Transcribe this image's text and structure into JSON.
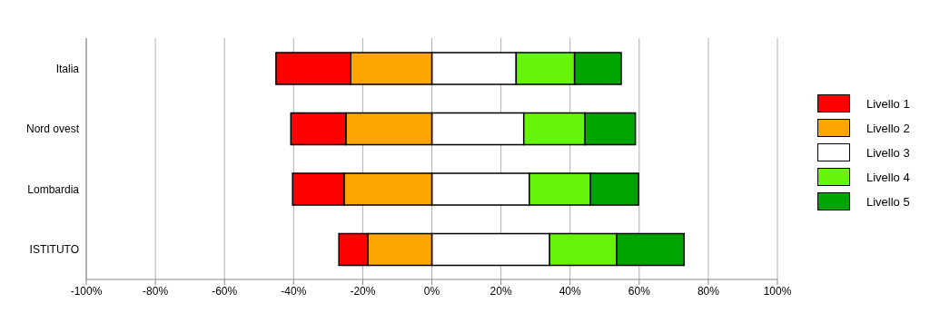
{
  "chart_data": {
    "type": "bar",
    "orientation": "horizontal",
    "stacked": true,
    "categories": [
      "Italia",
      "Nord ovest",
      "Lombardia",
      "ISTITUTO"
    ],
    "series": [
      {
        "name": "Livello 1",
        "color": "#ff0000",
        "values": [
          -21.6,
          -15.9,
          -14.9,
          -8.4
        ]
      },
      {
        "name": "Livello 2",
        "color": "#ffa500",
        "values": [
          -23.5,
          -24.9,
          -25.4,
          -18.5
        ]
      },
      {
        "name": "Livello 3",
        "color": "#ffffff",
        "values": [
          24.4,
          26.6,
          28.2,
          34.1
        ]
      },
      {
        "name": "Livello 4",
        "color": "#66f50a",
        "values": [
          16.9,
          17.7,
          17.7,
          19.4
        ]
      },
      {
        "name": "Livello 5",
        "color": "#00a400",
        "values": [
          13.5,
          14.6,
          13.9,
          19.5
        ]
      }
    ],
    "xlim": [
      -100,
      100
    ],
    "xticks": [
      {
        "value": -100,
        "label": "-100%"
      },
      {
        "value": -80,
        "label": "-80%"
      },
      {
        "value": -60,
        "label": "-60%"
      },
      {
        "value": -40,
        "label": "-40%"
      },
      {
        "value": -20,
        "label": "-20%"
      },
      {
        "value": 0,
        "label": "0%"
      },
      {
        "value": 20,
        "label": "20%"
      },
      {
        "value": 40,
        "label": "40%"
      },
      {
        "value": 60,
        "label": "60%"
      },
      {
        "value": 80,
        "label": "80%"
      },
      {
        "value": 100,
        "label": "100%"
      }
    ],
    "grid": "x",
    "legend": "right"
  }
}
